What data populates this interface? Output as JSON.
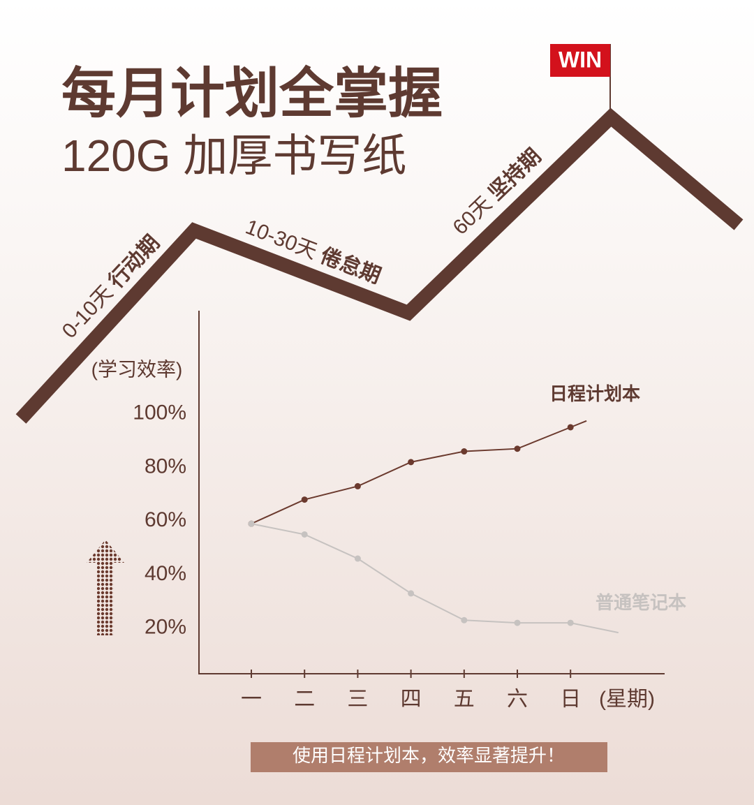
{
  "header": {
    "title": "每月计划全掌握",
    "subtitle": "120G 加厚书写纸",
    "flag": "WIN",
    "stages": [
      {
        "days": "0-10天",
        "name": "行动期"
      },
      {
        "days": "10-30天",
        "name": "倦怠期"
      },
      {
        "days": "60天",
        "name": "坚持期"
      }
    ]
  },
  "chart_data": {
    "type": "line",
    "y_label": "(学习效率)",
    "x_label": "(星期)",
    "categories": [
      "一",
      "二",
      "三",
      "四",
      "五",
      "六",
      "日"
    ],
    "series": [
      {
        "name": "日程计划本",
        "color": "#6b3a2e",
        "values": [
          59,
          68,
          73,
          82,
          86,
          87,
          95
        ]
      },
      {
        "name": "普通笔记本",
        "color": "#c6c2c0",
        "values": [
          59,
          55,
          46,
          33,
          23,
          22,
          22
        ]
      }
    ],
    "ylim": [
      3,
      138
    ],
    "yticks": [
      {
        "value": 20,
        "label": "20%"
      },
      {
        "value": 40,
        "label": "40%"
      },
      {
        "value": 60,
        "label": "60%"
      },
      {
        "value": 80,
        "label": "80%"
      },
      {
        "value": 100,
        "label": "100%"
      }
    ],
    "grid": false
  },
  "footer": {
    "banner": "使用日程计划本，效率显著提升！"
  }
}
